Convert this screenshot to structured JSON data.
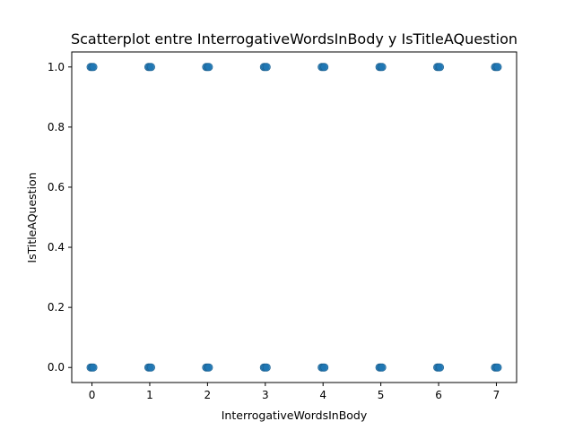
{
  "chart_data": {
    "type": "scatter",
    "title": "Scatterplot entre InterrogativeWordsInBody y IsTitleAQuestion",
    "xlabel": "InterrogativeWordsInBody",
    "ylabel": "IsTitleAQuestion",
    "xlim": [
      -0.35,
      7.35
    ],
    "ylim": [
      -0.05,
      1.05
    ],
    "xticks": [
      0,
      1,
      2,
      3,
      4,
      5,
      6,
      7
    ],
    "yticks": [
      0.0,
      0.2,
      0.4,
      0.6,
      0.8,
      1.0
    ],
    "xtick_labels": [
      "0",
      "1",
      "2",
      "3",
      "4",
      "5",
      "6",
      "7"
    ],
    "ytick_labels": [
      "0.0",
      "0.2",
      "0.4",
      "0.6",
      "0.8",
      "1.0"
    ],
    "grid": false,
    "marker_color": "#1f77b4",
    "series": [
      {
        "x": [
          0,
          1,
          2,
          3,
          4,
          5,
          6,
          7,
          0,
          1,
          2,
          3,
          4,
          5,
          6,
          7
        ],
        "y": [
          1,
          1,
          1,
          1,
          1,
          1,
          1,
          1,
          0,
          0,
          0,
          0,
          0,
          0,
          0,
          0
        ]
      }
    ]
  }
}
